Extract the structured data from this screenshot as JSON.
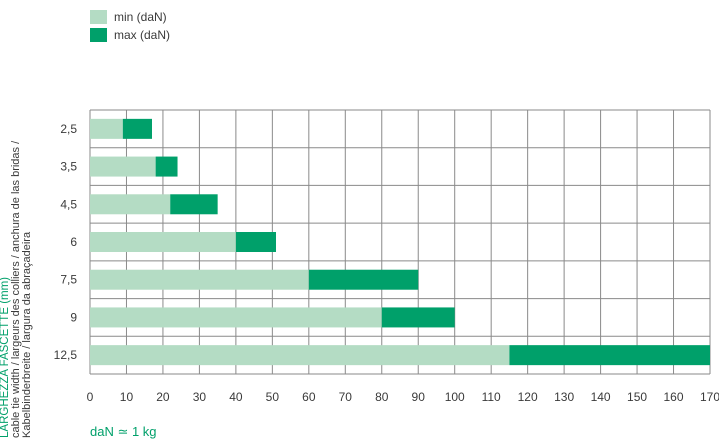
{
  "legend": {
    "min_label": "min (daN)",
    "max_label": "max (daN)"
  },
  "y_axis_label": {
    "line1": "LARGHEZZA FASCETTE (mm)",
    "line2": "cable tie width / largeurs des colliers / anchura de las bridas /",
    "line3": "Kabelbinderbreite / largura da abraçadeira"
  },
  "x_unit_label": "daN ≃ 1 kg",
  "colors": {
    "min": "#b4dcc4",
    "max": "#00a06a",
    "grid": "#8a8a8a"
  },
  "chart_data": {
    "type": "bar",
    "orientation": "horizontal",
    "stacked_ranges": true,
    "categories": [
      "2,5",
      "3,5",
      "4,5",
      "6",
      "7,5",
      "9",
      "12,5"
    ],
    "series": [
      {
        "name": "min (daN)",
        "values": [
          9,
          18,
          22,
          40,
          60,
          80,
          115
        ]
      },
      {
        "name": "max (daN)",
        "values": [
          17,
          24,
          35,
          51,
          90,
          100,
          170
        ]
      }
    ],
    "xticks": [
      "0",
      "10",
      "20",
      "30",
      "40",
      "50",
      "60",
      "70",
      "80",
      "90",
      "100",
      "110",
      "120",
      "130",
      "140",
      "150",
      "160",
      "170"
    ],
    "xlim": [
      0,
      170
    ],
    "grid": true,
    "legend_position": "top-left"
  }
}
